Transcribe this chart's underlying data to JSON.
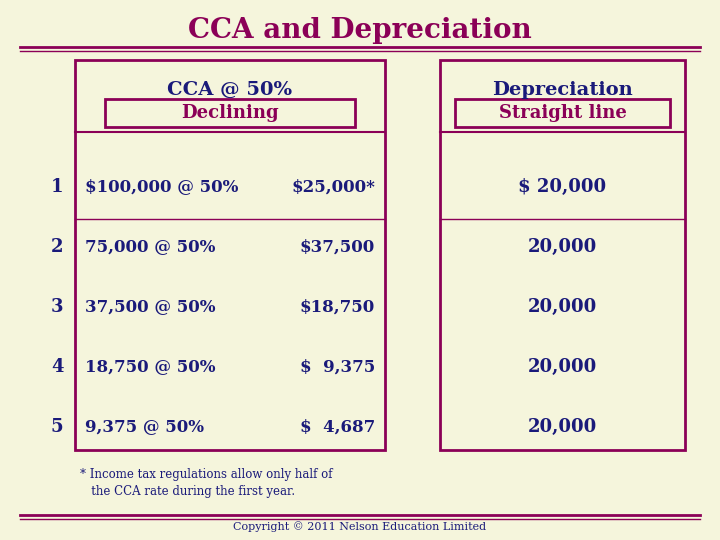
{
  "title": "CCA and Depreciation",
  "title_color": "#8B0057",
  "background_color": "#F5F5DC",
  "header_left": "CCA @ 50%",
  "header_right": "Depreciation",
  "subheader_left": "Declining",
  "subheader_right": "Straight line",
  "rows": [
    {
      "year": "1",
      "cca_base": "$100,000 @ 50%",
      "cca_amount": "$25,000*",
      "dep": "$ 20,000"
    },
    {
      "year": "2",
      "cca_base": "75,000 @ 50%",
      "cca_amount": "$37,500",
      "dep": "20,000"
    },
    {
      "year": "3",
      "cca_base": "37,500 @ 50%",
      "cca_amount": "$18,750",
      "dep": "20,000"
    },
    {
      "year": "4",
      "cca_base": "18,750 @ 50%",
      "cca_amount": "$  9,375",
      "dep": "20,000"
    },
    {
      "year": "5",
      "cca_base": "9,375 @ 50%",
      "cca_amount": "$  4,687",
      "dep": "20,000"
    }
  ],
  "footnote": "* Income tax regulations allow only half of\n   the CCA rate during the first year.",
  "copyright": "Copyright © 2011 Nelson Education Limited",
  "border_color": "#8B0057",
  "text_color_dark": "#1a1a7a",
  "text_color_maroon": "#8B0057"
}
